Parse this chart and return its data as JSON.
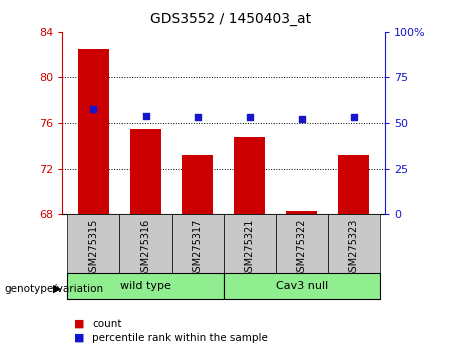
{
  "title": "GDS3552 / 1450403_at",
  "samples": [
    "GSM275315",
    "GSM275316",
    "GSM275317",
    "GSM275321",
    "GSM275322",
    "GSM275323"
  ],
  "counts": [
    82.5,
    75.5,
    73.2,
    74.8,
    68.3,
    73.2
  ],
  "percentile_ranks": [
    57.5,
    54.0,
    53.5,
    53.5,
    52.0,
    53.5
  ],
  "ylim_left": [
    68,
    84
  ],
  "yticks_left": [
    68,
    72,
    76,
    80,
    84
  ],
  "ylim_right": [
    0,
    100
  ],
  "yticks_right": [
    0,
    25,
    50,
    75,
    100
  ],
  "bar_color": "#CC0000",
  "dot_color": "#1515CC",
  "grid_lines": [
    72,
    76,
    80
  ],
  "bar_width": 0.6,
  "background_xtick": "#C8C8C8",
  "group_color": "#90EE90",
  "group_labels": [
    "wild type",
    "Cav3 null"
  ],
  "group_ranges": [
    [
      0,
      2
    ],
    [
      3,
      5
    ]
  ],
  "legend_count_label": "count",
  "legend_pct_label": "percentile rank within the sample",
  "genotype_label": "genotype/variation"
}
